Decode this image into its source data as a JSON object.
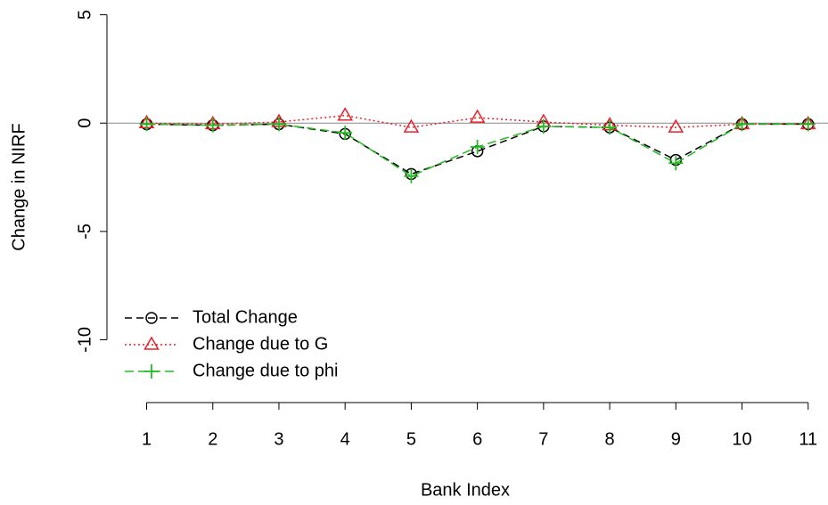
{
  "chart_data": {
    "type": "line",
    "x_label": "Bank Index",
    "y_label": "Change in NIRF",
    "x": [
      1,
      2,
      3,
      4,
      5,
      6,
      7,
      8,
      9,
      10,
      11
    ],
    "series": [
      {
        "name": "Total Change",
        "color": "#000000",
        "values": [
          -0.05,
          -0.1,
          -0.05,
          -0.5,
          -2.35,
          -1.3,
          -0.15,
          -0.2,
          -1.7,
          -0.05,
          -0.05
        ]
      },
      {
        "name": "Change due to G",
        "color": "#e8202a",
        "values": [
          0.0,
          -0.05,
          0.05,
          0.35,
          -0.2,
          0.25,
          0.05,
          -0.1,
          -0.2,
          -0.05,
          -0.05
        ]
      },
      {
        "name": "Change due to phi",
        "color": "#22bb22",
        "values": [
          -0.05,
          -0.1,
          -0.05,
          -0.45,
          -2.45,
          -1.1,
          -0.15,
          -0.2,
          -1.85,
          -0.05,
          -0.05
        ]
      }
    ],
    "xlim": [
      0.4,
      11.3
    ],
    "ylim": [
      -12.9,
      5.6
    ],
    "xticks": [
      1,
      2,
      3,
      4,
      5,
      6,
      7,
      8,
      9,
      10,
      11
    ],
    "yticks": [
      -10,
      -5,
      0,
      5
    ],
    "reference_line": 0,
    "legend": "bottom-left"
  }
}
